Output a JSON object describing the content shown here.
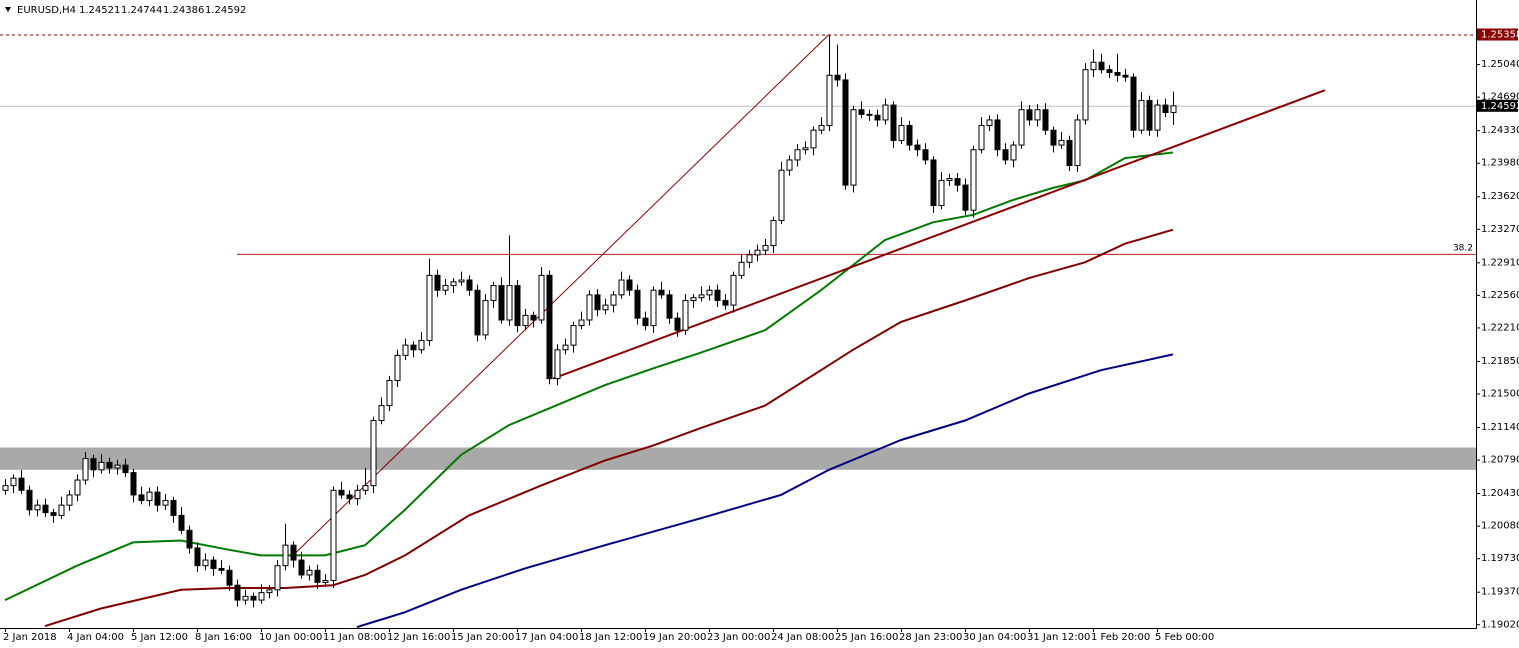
{
  "chart_data": {
    "type": "candlestick",
    "title": "EURUSD,H4",
    "categories": [
      "2 Jan 2018",
      null,
      null,
      null,
      null,
      null,
      null,
      null,
      "4 Jan 04:00",
      null,
      null,
      null,
      null,
      null,
      null,
      null,
      "5 Jan 12:00",
      null,
      null,
      null,
      null,
      null,
      null,
      null,
      "8 Jan 16:00",
      null,
      null,
      null,
      null,
      null,
      null,
      null,
      "10 Jan 00:00",
      null,
      null,
      null,
      null,
      null,
      null,
      null,
      "11 Jan 08:00",
      null,
      null,
      null,
      null,
      null,
      null,
      null,
      "12 Jan 16:00",
      null,
      null,
      null,
      null,
      null,
      null,
      null,
      "15 Jan 20:00",
      null,
      null,
      null,
      null,
      null,
      null,
      null,
      "17 Jan 04:00",
      null,
      null,
      null,
      null,
      null,
      null,
      null,
      "18 Jan 12:00",
      null,
      null,
      null,
      null,
      null,
      null,
      null,
      "19 Jan 20:00",
      null,
      null,
      null,
      null,
      null,
      null,
      null,
      "23 Jan 00:00",
      null,
      null,
      null,
      null,
      null,
      null,
      null,
      "24 Jan 08:00",
      null,
      null,
      null,
      null,
      null,
      null,
      null,
      "25 Jan 16:00",
      null,
      null,
      null,
      null,
      null,
      null,
      null,
      "28 Jan 23:00",
      null,
      null,
      null,
      null,
      null,
      null,
      null,
      "30 Jan 04:00",
      null,
      null,
      null,
      null,
      null,
      null,
      null,
      "31 Jan 12:00",
      null,
      null,
      null,
      null,
      null,
      null,
      null,
      "1 Feb 20:00",
      null,
      null,
      null,
      null,
      null,
      null,
      null,
      "5 Feb 00:00",
      null,
      null
    ],
    "open": [
      1.2046,
      1.2051,
      1.2059,
      1.2046,
      1.2025,
      1.203,
      1.2022,
      1.2019,
      1.203,
      1.2041,
      1.2057,
      1.208,
      1.2068,
      1.2076,
      1.207,
      1.2073,
      1.2065,
      1.2041,
      1.2035,
      1.2044,
      1.203,
      1.2035,
      1.2019,
      1.2003,
      1.1984,
      1.1965,
      1.1971,
      1.1962,
      1.196,
      1.1944,
      1.1928,
      1.1932,
      1.1928,
      1.1936,
      1.1939,
      1.1965,
      1.1987,
      1.1971,
      1.1955,
      1.196,
      1.1947,
      1.1949,
      1.2046,
      1.2041,
      1.2037,
      1.2046,
      1.2051,
      1.2121,
      1.2137,
      1.2164,
      1.2191,
      1.2202,
      1.2197,
      1.2207,
      1.2277,
      1.2261,
      1.2266,
      1.227,
      1.2272,
      1.2261,
      1.2213,
      1.225,
      1.2266,
      1.2229,
      1.2266,
      1.2223,
      1.2234,
      1.2229,
      1.2277,
      1.2166,
      1.2197,
      1.2202,
      1.2223,
      1.2229,
      1.2256,
      1.224,
      1.2245,
      1.2256,
      1.2272,
      1.2261,
      1.2231,
      1.2223,
      1.2261,
      1.2256,
      1.2231,
      1.2218,
      1.225,
      1.2253,
      1.2256,
      1.2261,
      1.225,
      1.2245,
      1.2277,
      1.2291,
      1.2299,
      1.2304,
      1.2309,
      1.2336,
      1.239,
      1.2401,
      1.2412,
      1.2414,
      1.2433,
      1.2438,
      1.2492,
      1.2487,
      1.2374,
      1.2455,
      1.245,
      1.2449,
      1.2444,
      1.246,
      1.2422,
      1.2438,
      1.2417,
      1.2412,
      1.2401,
      1.2352,
      1.2379,
      1.2381,
      1.2374,
      1.2347,
      1.2412,
      1.2438,
      1.2444,
      1.2412,
      1.2401,
      1.2417,
      1.2455,
      1.2444,
      1.2455,
      1.2433,
      1.2417,
      1.2422,
      1.2395,
      1.2444,
      1.2498,
      1.2506,
      1.2498,
      1.2495,
      1.2492,
      1.249,
      1.2433,
      1.2465,
      1.2433,
      1.246,
      1.24521
    ],
    "high": [
      1.2058,
      1.2063,
      1.2068,
      1.2051,
      1.2036,
      1.2037,
      1.2026,
      1.2039,
      1.2046,
      1.2063,
      1.2087,
      1.2084,
      1.2085,
      1.2081,
      1.2079,
      1.208,
      1.2069,
      1.205,
      1.2049,
      1.205,
      1.2042,
      1.2039,
      1.2028,
      1.2008,
      1.199,
      1.1978,
      1.1975,
      1.1971,
      1.1965,
      1.195,
      1.1939,
      1.1936,
      1.1945,
      1.1944,
      1.1971,
      1.201,
      1.1991,
      1.198,
      1.1965,
      1.1966,
      1.1956,
      1.205,
      1.2055,
      1.2046,
      1.2052,
      1.207,
      1.2125,
      1.2146,
      1.2169,
      1.2197,
      1.2209,
      1.2206,
      1.2216,
      1.2295,
      1.2283,
      1.2273,
      1.2274,
      1.2281,
      1.2277,
      1.2267,
      1.2257,
      1.227,
      1.2275,
      1.232,
      1.2272,
      1.2241,
      1.2238,
      1.2286,
      1.2282,
      1.2203,
      1.2209,
      1.2227,
      1.2238,
      1.2261,
      1.2262,
      1.2252,
      1.226,
      1.2281,
      1.2277,
      1.2267,
      1.2238,
      1.2265,
      1.227,
      1.2261,
      1.2237,
      1.2257,
      1.2257,
      1.2265,
      1.2266,
      1.2267,
      1.2257,
      1.2281,
      1.23,
      1.2304,
      1.231,
      1.2316,
      1.234,
      1.2399,
      1.2406,
      1.2418,
      1.2421,
      1.2437,
      1.2447,
      1.2536,
      1.2525,
      1.2494,
      1.2459,
      1.2464,
      1.2455,
      1.2455,
      1.2467,
      1.2464,
      1.2447,
      1.2443,
      1.2423,
      1.2419,
      1.2405,
      1.2388,
      1.2386,
      1.2387,
      1.2381,
      1.2416,
      1.2447,
      1.2449,
      1.245,
      1.2419,
      1.2421,
      1.2464,
      1.246,
      1.2461,
      1.2462,
      1.2437,
      1.2431,
      1.2427,
      1.245,
      1.2505,
      1.252,
      1.2515,
      1.2503,
      1.2515,
      1.2499,
      1.2494,
      1.2474,
      1.247,
      1.2466,
      1.2467,
      1.24744
    ],
    "low": [
      1.2041,
      1.2043,
      1.2042,
      1.2019,
      1.2018,
      1.2017,
      1.2011,
      1.2015,
      1.2024,
      1.2034,
      1.2052,
      1.206,
      1.2064,
      1.2064,
      1.2063,
      1.206,
      1.2033,
      1.2031,
      1.2029,
      1.2023,
      1.2025,
      1.2011,
      1.1999,
      1.1978,
      1.1958,
      1.196,
      1.1954,
      1.1956,
      1.1938,
      1.1921,
      1.1923,
      1.192,
      1.1924,
      1.193,
      1.1932,
      1.196,
      1.1963,
      1.1951,
      1.1949,
      1.194,
      1.1942,
      1.1941,
      1.2037,
      1.2031,
      1.203,
      1.2041,
      1.2043,
      1.2117,
      1.2131,
      1.2157,
      1.2186,
      1.2189,
      1.2193,
      1.2201,
      1.2254,
      1.2256,
      1.2258,
      1.2266,
      1.2255,
      1.2206,
      1.2208,
      1.2242,
      1.2225,
      1.2223,
      1.2216,
      1.2218,
      1.2221,
      1.2225,
      1.216,
      1.2159,
      1.2192,
      1.2194,
      1.2219,
      1.2223,
      1.2233,
      1.2235,
      1.2237,
      1.2252,
      1.2255,
      1.2224,
      1.2218,
      1.2215,
      1.2252,
      1.2225,
      1.2211,
      1.2213,
      1.2242,
      1.2249,
      1.225,
      1.2243,
      1.224,
      1.2237,
      1.2273,
      1.2285,
      1.2292,
      1.2299,
      1.2301,
      1.2332,
      1.2384,
      1.2394,
      1.2407,
      1.2406,
      1.2429,
      1.2432,
      1.248,
      1.2369,
      1.2366,
      1.2446,
      1.2443,
      1.2437,
      1.2439,
      1.2414,
      1.2418,
      1.2411,
      1.2405,
      1.2396,
      1.2344,
      1.2348,
      1.2373,
      1.2367,
      1.2342,
      1.2339,
      1.2408,
      1.2432,
      1.2405,
      1.2396,
      1.2393,
      1.2413,
      1.2438,
      1.2437,
      1.2428,
      1.2409,
      1.2413,
      1.2389,
      1.2388,
      1.2439,
      1.249,
      1.2494,
      1.2489,
      1.2485,
      1.2485,
      1.2425,
      1.2429,
      1.2427,
      1.2426,
      1.2447,
      1.24386
    ],
    "close": [
      1.2051,
      1.2059,
      1.2046,
      1.2025,
      1.203,
      1.2022,
      1.2019,
      1.203,
      1.2041,
      1.2057,
      1.208,
      1.2068,
      1.2076,
      1.207,
      1.2073,
      1.2065,
      1.2041,
      1.2035,
      1.2044,
      1.203,
      1.2035,
      1.2019,
      1.2003,
      1.1984,
      1.1965,
      1.1971,
      1.1962,
      1.196,
      1.1944,
      1.1928,
      1.1932,
      1.1928,
      1.1936,
      1.1939,
      1.1965,
      1.1987,
      1.1971,
      1.1955,
      1.196,
      1.1947,
      1.1949,
      1.2046,
      1.2041,
      1.2037,
      1.2046,
      1.2051,
      1.2121,
      1.2137,
      1.2164,
      1.2191,
      1.2202,
      1.2197,
      1.2207,
      1.2277,
      1.2261,
      1.2266,
      1.227,
      1.2272,
      1.2261,
      1.2213,
      1.225,
      1.2266,
      1.2229,
      1.2266,
      1.2223,
      1.2234,
      1.2229,
      1.2277,
      1.2166,
      1.2197,
      1.2202,
      1.2223,
      1.2229,
      1.2256,
      1.224,
      1.2245,
      1.2256,
      1.2272,
      1.2261,
      1.2231,
      1.2223,
      1.2261,
      1.2256,
      1.2231,
      1.2218,
      1.225,
      1.2253,
      1.2256,
      1.2261,
      1.225,
      1.2245,
      1.2277,
      1.2291,
      1.2299,
      1.2304,
      1.2309,
      1.2336,
      1.239,
      1.2401,
      1.2412,
      1.2414,
      1.2433,
      1.2438,
      1.2492,
      1.2487,
      1.2374,
      1.2455,
      1.245,
      1.2449,
      1.2444,
      1.246,
      1.2422,
      1.2438,
      1.2417,
      1.2412,
      1.2401,
      1.2352,
      1.2379,
      1.2381,
      1.2374,
      1.2347,
      1.2412,
      1.2438,
      1.2444,
      1.2412,
      1.2401,
      1.2417,
      1.2455,
      1.2444,
      1.2455,
      1.2433,
      1.2417,
      1.2422,
      1.2395,
      1.2444,
      1.2498,
      1.2506,
      1.2498,
      1.2495,
      1.2492,
      1.249,
      1.2433,
      1.2465,
      1.2433,
      1.246,
      1.2452,
      1.24592
    ],
    "up_color": "#ffffff",
    "down_color": "#000000",
    "lines": [
      {
        "color": "#007a00",
        "x": [
          0,
          9,
          16,
          22,
          28,
          32,
          40,
          45,
          50,
          57,
          63,
          68,
          75,
          81,
          87,
          95,
          102,
          106,
          110,
          116,
          121,
          126,
          131,
          135,
          140,
          146
        ],
        "values": [
          1.1928,
          1.1965,
          1.199,
          1.1992,
          1.1982,
          1.1976,
          1.1976,
          1.1987,
          1.2025,
          1.2084,
          1.2116,
          1.2134,
          1.2159,
          1.2177,
          1.2194,
          1.2218,
          1.2261,
          1.2288,
          1.2315,
          1.2334,
          1.2342,
          1.2358,
          1.2371,
          1.2379,
          1.2403,
          1.2409
        ]
      },
      {
        "color": "#800000",
        "x": [
          5,
          12,
          22,
          28,
          35,
          41,
          45,
          50,
          58,
          67,
          75,
          81,
          87,
          95,
          102,
          106,
          112,
          120,
          128,
          135,
          140,
          146
        ],
        "values": [
          1.19,
          1.1919,
          1.1939,
          1.1941,
          1.1941,
          1.1944,
          1.1955,
          1.1976,
          1.2019,
          1.2051,
          1.2078,
          1.2094,
          1.2113,
          1.2137,
          1.2175,
          1.2197,
          1.2227,
          1.225,
          1.2274,
          1.2291,
          1.2311,
          1.2326
        ]
      },
      {
        "color": "#000080",
        "x": [
          44,
          50,
          57,
          65,
          75,
          87,
          97,
          103,
          112,
          120,
          128,
          137,
          146
        ],
        "values": [
          1.1899,
          1.1915,
          1.1939,
          1.1962,
          1.1987,
          1.2016,
          1.2041,
          1.2068,
          1.21,
          1.2121,
          1.215,
          1.2175,
          1.2192
        ]
      }
    ],
    "trendlines": [
      {
        "color": "#8b0000",
        "x": [
          68.5,
          165
        ],
        "values": [
          1.2166,
          1.2476
        ]
      },
      {
        "color": "#8b0000",
        "x": [
          36,
          103
        ],
        "values": [
          1.1976,
          1.25358
        ]
      }
    ],
    "fib_level": {
      "label": "38.2",
      "value": 1.23,
      "x_start": 29,
      "color": "#b22222"
    },
    "zone": {
      "from": 1.2068,
      "to": 1.2092,
      "color": "#a9a9a9"
    },
    "level": {
      "value": 1.25358,
      "color": "#8b0000"
    },
    "ylim": [
      1.1898,
      1.256
    ],
    "yticks": [
      {
        "value": 1.2504,
        "label": "1.25040"
      },
      {
        "value": 1.2469,
        "label": "1.24690"
      },
      {
        "value": 1.2433,
        "label": "1.24330"
      },
      {
        "value": 1.2398,
        "label": "1.23980"
      },
      {
        "value": 1.2362,
        "label": "1.23620"
      },
      {
        "value": 1.2327,
        "label": "1.23270"
      },
      {
        "value": 1.2291,
        "label": "1.22910"
      },
      {
        "value": 1.2256,
        "label": "1.22560"
      },
      {
        "value": 1.2221,
        "label": "1.22210"
      },
      {
        "value": 1.2185,
        "label": "1.21850"
      },
      {
        "value": 1.215,
        "label": "1.21500"
      },
      {
        "value": 1.2114,
        "label": "1.21140"
      },
      {
        "value": 1.2079,
        "label": "1.20790"
      },
      {
        "value": 1.2043,
        "label": "1.20430"
      },
      {
        "value": 1.2008,
        "label": "1.20080"
      },
      {
        "value": 1.1973,
        "label": "1.19730"
      },
      {
        "value": 1.1937,
        "label": "1.19370"
      },
      {
        "value": 1.1902,
        "label": "1.19020"
      }
    ],
    "grid": false
  }
}
